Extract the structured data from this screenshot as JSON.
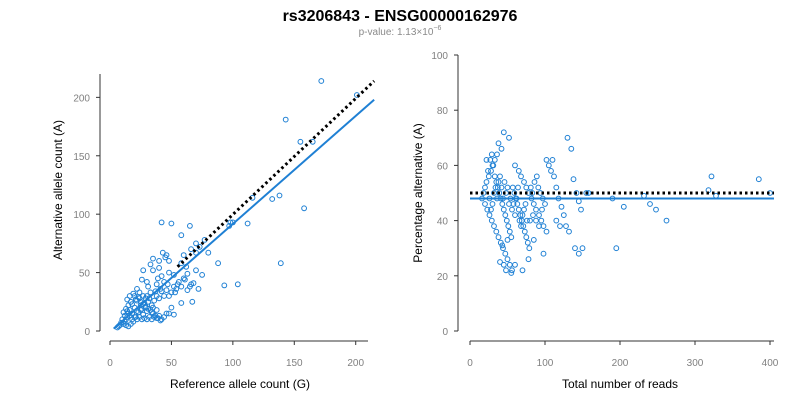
{
  "page": {
    "title": "rs3206843 - ENSG00000162976",
    "pvalue_prefix": "p-value: 1.13×10",
    "pvalue_exponent": "−6"
  },
  "chart_data": [
    {
      "type": "scatter",
      "name": "allele-count-scatter",
      "xlabel": "Reference allele count (G)",
      "ylabel": "Alternative allele count (A)",
      "xlim": [
        0,
        210
      ],
      "ylim": [
        0,
        220
      ],
      "xticks": [
        0,
        50,
        100,
        150,
        200
      ],
      "yticks": [
        0,
        50,
        100,
        150,
        200
      ],
      "point_color": "#1f80d4",
      "fit_line": {
        "color": "#1f80d4",
        "points": [
          [
            3,
            2
          ],
          [
            215,
            198
          ]
        ]
      },
      "expected_line": {
        "color": "#000000",
        "style": "dotted",
        "points": [
          [
            55,
            55
          ],
          [
            215,
            214
          ]
        ]
      },
      "points": [
        [
          172,
          214
        ],
        [
          201,
          202
        ],
        [
          143,
          181
        ],
        [
          165,
          162
        ],
        [
          155,
          162
        ],
        [
          98,
          93
        ],
        [
          100,
          93
        ],
        [
          97,
          90
        ],
        [
          132,
          113
        ],
        [
          138,
          116
        ],
        [
          116,
          114
        ],
        [
          112,
          92
        ],
        [
          158,
          105
        ],
        [
          42,
          93
        ],
        [
          50,
          92
        ],
        [
          65,
          90
        ],
        [
          58,
          82
        ],
        [
          77,
          78
        ],
        [
          70,
          75
        ],
        [
          73,
          72
        ],
        [
          80,
          67
        ],
        [
          88,
          58
        ],
        [
          93,
          39
        ],
        [
          104,
          40
        ],
        [
          139,
          58
        ],
        [
          43,
          67
        ],
        [
          46,
          65
        ],
        [
          48,
          60
        ],
        [
          40,
          54
        ],
        [
          58,
          58
        ],
        [
          62,
          55
        ],
        [
          48,
          50
        ],
        [
          35,
          52
        ],
        [
          42,
          47
        ],
        [
          52,
          48
        ],
        [
          60,
          45
        ],
        [
          66,
          40
        ],
        [
          55,
          40
        ],
        [
          47,
          40
        ],
        [
          38,
          40
        ],
        [
          30,
          42
        ],
        [
          27,
          52
        ],
        [
          33,
          57
        ],
        [
          40,
          60
        ],
        [
          35,
          62
        ],
        [
          45,
          63
        ],
        [
          60,
          65
        ],
        [
          66,
          70
        ],
        [
          70,
          67
        ],
        [
          63,
          49
        ],
        [
          68,
          41
        ],
        [
          70,
          52
        ],
        [
          75,
          48
        ],
        [
          72,
          36
        ],
        [
          67,
          25
        ],
        [
          58,
          24
        ],
        [
          53,
          33
        ],
        [
          44,
          42
        ],
        [
          39,
          45
        ],
        [
          31,
          38
        ],
        [
          26,
          44
        ],
        [
          24,
          33
        ],
        [
          22,
          36
        ],
        [
          30,
          30
        ],
        [
          32,
          28
        ],
        [
          28,
          24
        ],
        [
          25,
          22
        ],
        [
          22,
          26
        ],
        [
          20,
          20
        ],
        [
          18,
          23
        ],
        [
          16,
          18
        ],
        [
          15,
          15
        ],
        [
          14,
          12
        ],
        [
          13,
          10
        ],
        [
          12,
          8
        ],
        [
          11,
          6
        ],
        [
          13,
          5
        ],
        [
          15,
          4
        ],
        [
          17,
          6
        ],
        [
          19,
          8
        ],
        [
          21,
          12
        ],
        [
          23,
          16
        ],
        [
          25,
          18
        ],
        [
          27,
          14
        ],
        [
          29,
          20
        ],
        [
          31,
          25
        ],
        [
          34,
          22
        ],
        [
          36,
          26
        ],
        [
          38,
          30
        ],
        [
          40,
          28
        ],
        [
          42,
          34
        ],
        [
          44,
          30
        ],
        [
          46,
          35
        ],
        [
          48,
          30
        ],
        [
          50,
          33
        ],
        [
          52,
          38
        ],
        [
          54,
          36
        ],
        [
          56,
          42
        ],
        [
          58,
          38
        ],
        [
          61,
          44
        ],
        [
          63,
          35
        ],
        [
          65,
          38
        ],
        [
          18,
          10
        ],
        [
          20,
          12
        ],
        [
          22,
          10
        ],
        [
          24,
          12
        ],
        [
          26,
          10
        ],
        [
          28,
          11
        ],
        [
          30,
          10
        ],
        [
          32,
          12
        ],
        [
          34,
          10
        ],
        [
          36,
          12
        ],
        [
          38,
          11
        ],
        [
          40,
          13
        ],
        [
          42,
          10
        ],
        [
          44,
          12
        ],
        [
          46,
          15
        ],
        [
          38,
          18
        ],
        [
          34,
          16
        ],
        [
          30,
          17
        ],
        [
          26,
          19
        ],
        [
          22,
          17
        ],
        [
          18,
          15
        ],
        [
          16,
          13
        ],
        [
          14,
          17
        ],
        [
          12,
          13
        ],
        [
          10,
          10
        ],
        [
          9,
          7
        ],
        [
          8,
          5
        ],
        [
          7,
          4
        ],
        [
          6,
          3
        ],
        [
          48,
          15
        ],
        [
          52,
          14
        ],
        [
          50,
          20
        ],
        [
          35,
          20
        ],
        [
          29,
          28
        ],
        [
          27,
          30
        ],
        [
          33,
          33
        ],
        [
          37,
          34
        ],
        [
          41,
          36
        ],
        [
          24,
          28
        ],
        [
          20,
          30
        ],
        [
          17,
          25
        ],
        [
          15,
          22
        ],
        [
          13,
          19
        ],
        [
          11,
          16
        ],
        [
          14,
          27
        ],
        [
          16,
          30
        ],
        [
          19,
          32
        ],
        [
          23,
          29
        ],
        [
          21,
          27
        ],
        [
          25,
          25
        ],
        [
          27,
          23
        ],
        [
          29,
          21
        ],
        [
          31,
          19
        ],
        [
          33,
          18
        ],
        [
          35,
          15
        ],
        [
          37,
          13
        ],
        [
          39,
          11
        ],
        [
          41,
          9
        ]
      ]
    },
    {
      "type": "scatter",
      "name": "percentage-alt-scatter",
      "xlabel": "Total number of reads",
      "ylabel": "Percentage alternative (A)",
      "xlim": [
        0,
        400
      ],
      "ylim": [
        0,
        100
      ],
      "xticks": [
        0,
        100,
        200,
        300,
        400
      ],
      "yticks": [
        0,
        20,
        40,
        60,
        80,
        100
      ],
      "point_color": "#1f80d4",
      "fit_line": {
        "color": "#1f80d4",
        "value": 48
      },
      "expected_line": {
        "color": "#000000",
        "style": "dotted",
        "value": 50
      },
      "points": [
        [
          45,
          72
        ],
        [
          52,
          70
        ],
        [
          38,
          68
        ],
        [
          42,
          66
        ],
        [
          36,
          64
        ],
        [
          33,
          62
        ],
        [
          30,
          60
        ],
        [
          28,
          58
        ],
        [
          25,
          56
        ],
        [
          22,
          54
        ],
        [
          20,
          52
        ],
        [
          18,
          50
        ],
        [
          16,
          48
        ],
        [
          20,
          46
        ],
        [
          23,
          44
        ],
        [
          26,
          42
        ],
        [
          29,
          40
        ],
        [
          32,
          38
        ],
        [
          35,
          36
        ],
        [
          38,
          34
        ],
        [
          41,
          32
        ],
        [
          44,
          30
        ],
        [
          47,
          28
        ],
        [
          50,
          26
        ],
        [
          53,
          24
        ],
        [
          56,
          22
        ],
        [
          40,
          25
        ],
        [
          45,
          24
        ],
        [
          48,
          22
        ],
        [
          55,
          21
        ],
        [
          60,
          24
        ],
        [
          43,
          31
        ],
        [
          50,
          33
        ],
        [
          60,
          60
        ],
        [
          65,
          58
        ],
        [
          68,
          56
        ],
        [
          72,
          54
        ],
        [
          75,
          52
        ],
        [
          78,
          50
        ],
        [
          82,
          48
        ],
        [
          85,
          46
        ],
        [
          88,
          44
        ],
        [
          92,
          42
        ],
        [
          95,
          40
        ],
        [
          98,
          38
        ],
        [
          102,
          36
        ],
        [
          105,
          60
        ],
        [
          108,
          58
        ],
        [
          112,
          56
        ],
        [
          115,
          52
        ],
        [
          118,
          48
        ],
        [
          122,
          45
        ],
        [
          125,
          42
        ],
        [
          128,
          38
        ],
        [
          132,
          36
        ],
        [
          135,
          66
        ],
        [
          138,
          55
        ],
        [
          142,
          50
        ],
        [
          145,
          47
        ],
        [
          148,
          44
        ],
        [
          150,
          30
        ],
        [
          155,
          50
        ],
        [
          158,
          50
        ],
        [
          130,
          70
        ],
        [
          140,
          30
        ],
        [
          102,
          62
        ],
        [
          110,
          62
        ],
        [
          98,
          28
        ],
        [
          85,
          33
        ],
        [
          78,
          26
        ],
        [
          70,
          22
        ],
        [
          27,
          62
        ],
        [
          29,
          64
        ],
        [
          31,
          60
        ],
        [
          33,
          56
        ],
        [
          35,
          54
        ],
        [
          37,
          52
        ],
        [
          39,
          50
        ],
        [
          41,
          48
        ],
        [
          43,
          46
        ],
        [
          45,
          44
        ],
        [
          47,
          42
        ],
        [
          49,
          40
        ],
        [
          51,
          38
        ],
        [
          53,
          36
        ],
        [
          55,
          34
        ],
        [
          57,
          52
        ],
        [
          59,
          50
        ],
        [
          61,
          48
        ],
        [
          63,
          46
        ],
        [
          65,
          44
        ],
        [
          67,
          42
        ],
        [
          69,
          40
        ],
        [
          71,
          38
        ],
        [
          73,
          36
        ],
        [
          75,
          34
        ],
        [
          77,
          32
        ],
        [
          79,
          30
        ],
        [
          81,
          52
        ],
        [
          83,
          50
        ],
        [
          86,
          54
        ],
        [
          89,
          56
        ],
        [
          91,
          52
        ],
        [
          94,
          50
        ],
        [
          97,
          48
        ],
        [
          22,
          62
        ],
        [
          24,
          58
        ],
        [
          26,
          48
        ],
        [
          28,
          44
        ],
        [
          30,
          46
        ],
        [
          32,
          50
        ],
        [
          34,
          52
        ],
        [
          36,
          48
        ],
        [
          38,
          54
        ],
        [
          40,
          56
        ],
        [
          42,
          52
        ],
        [
          44,
          48
        ],
        [
          46,
          54
        ],
        [
          48,
          50
        ],
        [
          50,
          52
        ],
        [
          52,
          46
        ],
        [
          54,
          48
        ],
        [
          56,
          44
        ],
        [
          58,
          46
        ],
        [
          60,
          42
        ],
        [
          62,
          48
        ],
        [
          64,
          52
        ],
        [
          66,
          40
        ],
        [
          68,
          38
        ],
        [
          70,
          42
        ],
        [
          72,
          44
        ],
        [
          74,
          46
        ],
        [
          76,
          40
        ],
        [
          80,
          40
        ],
        [
          84,
          42
        ],
        [
          88,
          40
        ],
        [
          92,
          38
        ],
        [
          96,
          44
        ],
        [
          100,
          46
        ],
        [
          145,
          28
        ],
        [
          190,
          48
        ],
        [
          195,
          30
        ],
        [
          205,
          45
        ],
        [
          232,
          49
        ],
        [
          240,
          46
        ],
        [
          248,
          44
        ],
        [
          262,
          40
        ],
        [
          318,
          51
        ],
        [
          322,
          56
        ],
        [
          328,
          49
        ],
        [
          385,
          55
        ],
        [
          400,
          50
        ],
        [
          115,
          40
        ],
        [
          120,
          38
        ]
      ]
    }
  ]
}
